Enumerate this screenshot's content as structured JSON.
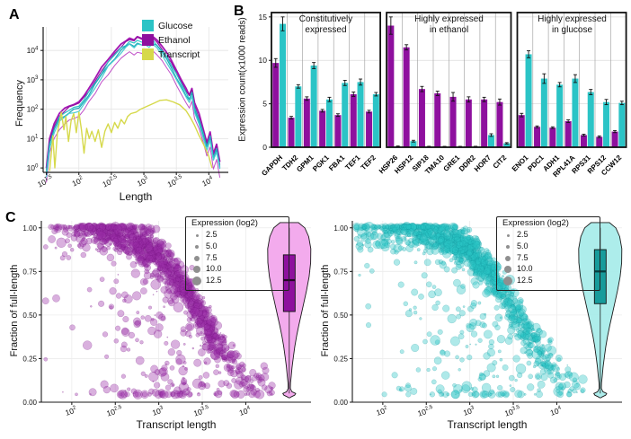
{
  "labels": {
    "panelA": "A",
    "panelB": "B",
    "panelC": "C"
  },
  "colors": {
    "glucose": "#2BC4C6",
    "ethanol": "#8E109E",
    "transcript": "#D6D94B",
    "grid": "#e4e4e4",
    "axis": "#1a1a1a",
    "legend_dot": "#8f8f8f"
  },
  "chart_data": [
    {
      "id": "A",
      "type": "line",
      "xlabel": "Length",
      "ylabel": "Frequency",
      "x_scale": "log10",
      "y_scale": "log10",
      "x_ticks": [
        "1.5",
        "2",
        "2.5",
        "3",
        "3.5",
        "4"
      ],
      "x_tick_vals": [
        1.5,
        2,
        2.5,
        3,
        3.5,
        4
      ],
      "y_ticks": [
        "0",
        "1",
        "2",
        "3",
        "4"
      ],
      "y_tick_vals": [
        0,
        1,
        2,
        3,
        4
      ],
      "xlim_log": [
        1.45,
        4.3
      ],
      "ylim_log": [
        -0.15,
        4.8
      ],
      "legend": [
        {
          "label": "Glucose",
          "color": "#2BC4C6"
        },
        {
          "label": "Ethanol",
          "color": "#8E109E"
        },
        {
          "label": "Transcript",
          "color": "#D6D94B"
        }
      ],
      "base_curve": [
        [
          1.5,
          0.0
        ],
        [
          1.55,
          1.0
        ],
        [
          1.62,
          1.5
        ],
        [
          1.7,
          1.85
        ],
        [
          1.78,
          2.0
        ],
        [
          1.85,
          2.1
        ],
        [
          1.92,
          2.2
        ],
        [
          2.0,
          2.25
        ],
        [
          2.08,
          2.45
        ],
        [
          2.15,
          2.7
        ],
        [
          2.25,
          3.05
        ],
        [
          2.35,
          3.4
        ],
        [
          2.45,
          3.7
        ],
        [
          2.55,
          3.95
        ],
        [
          2.65,
          4.2
        ],
        [
          2.72,
          4.35
        ],
        [
          2.78,
          4.45
        ],
        [
          2.85,
          4.38
        ],
        [
          2.9,
          4.48
        ],
        [
          2.97,
          4.42
        ],
        [
          3.03,
          4.5
        ],
        [
          3.08,
          4.42
        ],
        [
          3.13,
          4.48
        ],
        [
          3.2,
          4.35
        ],
        [
          3.28,
          4.15
        ],
        [
          3.35,
          3.9
        ],
        [
          3.42,
          3.65
        ],
        [
          3.5,
          3.3
        ],
        [
          3.58,
          3.0
        ],
        [
          3.65,
          2.7
        ],
        [
          3.7,
          2.5
        ],
        [
          3.74,
          2.75
        ],
        [
          3.78,
          2.2
        ],
        [
          3.85,
          1.8
        ],
        [
          3.92,
          1.3
        ],
        [
          3.97,
          0.9
        ],
        [
          4.02,
          1.2
        ],
        [
          4.07,
          0.5
        ],
        [
          4.12,
          0.8
        ],
        [
          4.17,
          0.2
        ]
      ],
      "series": [
        {
          "name": "Ethanol rep 1",
          "group": "ethanol",
          "color": "#A416B2",
          "offset": 0,
          "width": 1.8,
          "seed": 11
        },
        {
          "name": "Ethanol rep 2",
          "group": "ethanol",
          "color": "#8E109E",
          "offset": -0.06,
          "width": 1.1,
          "seed": 22
        },
        {
          "name": "Ethanol rep 3",
          "group": "ethanol",
          "color": "#C050C8",
          "offset": -0.5,
          "width": 1.0,
          "seed": 33
        },
        {
          "name": "Glucose rep 1",
          "group": "glucose",
          "color": "#2BC4C6",
          "offset": -0.14,
          "width": 1.2,
          "seed": 44
        },
        {
          "name": "Glucose rep 2",
          "group": "glucose",
          "color": "#1FA8B8",
          "offset": -0.2,
          "width": 1.2,
          "seed": 55
        },
        {
          "name": "Glucose rep 3",
          "group": "glucose",
          "color": "#49CDD2",
          "offset": -0.28,
          "width": 1.2,
          "seed": 66
        }
      ],
      "jitter": 0.1,
      "transcript_curve": [
        [
          1.55,
          -0.1
        ],
        [
          1.58,
          0.6
        ],
        [
          1.6,
          1.1
        ],
        [
          1.63,
          0.0
        ],
        [
          1.67,
          1.2
        ],
        [
          1.7,
          1.55
        ],
        [
          1.73,
          1.9
        ],
        [
          1.77,
          1.3
        ],
        [
          1.8,
          1.75
        ],
        [
          1.84,
          0.9
        ],
        [
          1.88,
          1.6
        ],
        [
          1.92,
          1.85
        ],
        [
          1.96,
          1.2
        ],
        [
          2.0,
          1.9
        ],
        [
          2.04,
          1.3
        ],
        [
          2.08,
          0.5
        ],
        [
          2.12,
          1.35
        ],
        [
          2.16,
          1.0
        ],
        [
          2.2,
          1.25
        ],
        [
          2.25,
          0.9
        ],
        [
          2.3,
          1.3
        ],
        [
          2.35,
          0.7
        ],
        [
          2.4,
          1.25
        ],
        [
          2.45,
          1.5
        ],
        [
          2.5,
          1.2
        ],
        [
          2.55,
          1.55
        ],
        [
          2.6,
          1.35
        ],
        [
          2.65,
          1.65
        ],
        [
          2.7,
          1.5
        ],
        [
          2.75,
          1.75
        ],
        [
          2.8,
          1.85
        ],
        [
          2.88,
          1.9
        ],
        [
          2.95,
          2.0
        ],
        [
          3.05,
          2.1
        ],
        [
          3.15,
          2.2
        ],
        [
          3.25,
          2.3
        ],
        [
          3.35,
          2.32
        ],
        [
          3.45,
          2.25
        ],
        [
          3.55,
          2.15
        ],
        [
          3.65,
          1.95
        ],
        [
          3.72,
          1.7
        ],
        [
          3.78,
          1.45
        ],
        [
          3.85,
          1.1
        ],
        [
          3.92,
          0.8
        ],
        [
          4.0,
          0.4
        ],
        [
          4.05,
          0.0
        ]
      ],
      "transcript_width": 1.4
    },
    {
      "id": "B",
      "type": "bar",
      "ylabel": "Expression count(x1000 reads)",
      "ylim": [
        0,
        15.5
      ],
      "y_ticks": [
        "0",
        "5",
        "10",
        "15"
      ],
      "y_tick_vals": [
        0,
        5,
        10,
        15
      ],
      "series_order": [
        "ethanol",
        "glucose"
      ],
      "groups": [
        {
          "title": "Constitutively\nexpressed",
          "genes": [
            "GAPDH",
            "TDH2",
            "GPM1",
            "PGK1",
            "FBA1",
            "TEF1",
            "TEF2"
          ],
          "ethanol": [
            9.7,
            3.4,
            5.6,
            4.2,
            3.7,
            6.1,
            4.1
          ],
          "ethanol_err": [
            0.5,
            0.15,
            0.2,
            0.15,
            0.15,
            0.25,
            0.15
          ],
          "glucose": [
            14.2,
            7.0,
            9.4,
            5.5,
            7.4,
            7.5,
            6.1
          ],
          "glucose_err": [
            0.8,
            0.2,
            0.35,
            0.25,
            0.3,
            0.35,
            0.2
          ]
        },
        {
          "title": "Highly expressed\nin ethanol",
          "genes": [
            "HSP26",
            "HSP12",
            "SIP18",
            "TMA10",
            "GRE1",
            "DDR2",
            "HOR7",
            "CIT2"
          ],
          "ethanol": [
            14.0,
            11.5,
            6.7,
            6.2,
            5.8,
            5.5,
            5.5,
            5.2
          ],
          "ethanol_err": [
            1.0,
            0.3,
            0.3,
            0.25,
            0.5,
            0.3,
            0.25,
            0.35
          ],
          "glucose": [
            0.1,
            0.7,
            0.08,
            0.07,
            0.07,
            0.08,
            1.4,
            0.45
          ],
          "glucose_err": [
            0.04,
            0.1,
            0.03,
            0.03,
            0.03,
            0.03,
            0.15,
            0.08
          ]
        },
        {
          "title": "Highly expressed\nin glucose",
          "genes": [
            "ENO1",
            "PDC1",
            "ADH1",
            "RPL41A",
            "RPS31",
            "RPS12",
            "CCW12"
          ],
          "ethanol": [
            3.7,
            2.35,
            2.25,
            3.0,
            1.4,
            1.2,
            1.8
          ],
          "ethanol_err": [
            0.2,
            0.1,
            0.1,
            0.15,
            0.1,
            0.1,
            0.12
          ],
          "glucose": [
            10.7,
            7.9,
            7.2,
            7.9,
            6.35,
            5.2,
            5.1
          ],
          "glucose_err": [
            0.4,
            0.55,
            0.25,
            0.45,
            0.3,
            0.3,
            0.2
          ]
        }
      ]
    },
    {
      "id": "C-ethanol",
      "type": "scatter",
      "condition": "Ethanol",
      "xlabel": "Transcript length",
      "ylabel": "Fraction of full-length",
      "x_scale": "log10",
      "x_ticks": [
        "2",
        "2.5",
        "3",
        "3.5",
        "4"
      ],
      "x_tick_vals": [
        2,
        2.5,
        3,
        3.5,
        4
      ],
      "y_ticks": [
        "0.00",
        "0.25",
        "0.50",
        "0.75",
        "1.00"
      ],
      "y_tick_vals": [
        0,
        0.25,
        0.5,
        0.75,
        1.0
      ],
      "legend_title": "Expression (log2)",
      "legend_sizes": [
        "2.5",
        "5.0",
        "7.5",
        "10.0",
        "12.5"
      ],
      "color": "#9B2FA8",
      "edge": "#6d0b78",
      "points_model": {
        "n": 1400,
        "seed": 42,
        "logx_mean": 3.02,
        "logx_sd": 0.48,
        "logx_min": 1.7,
        "logx_max": 4.3,
        "uniform_frac": 0.12,
        "sig_mid": 3.48,
        "sig_scale": 0.3,
        "noise_sd": 0.055,
        "outlier_frac": 0.08,
        "floor_frac": 0.05,
        "expr_mean": 7,
        "expr_sd": 2.6
      },
      "violin": {
        "fill": "#F2A7EC",
        "stroke": "#1a1a1a",
        "box_fill": "#8E109E",
        "median_color": "#240427",
        "q1": 0.52,
        "median": 0.7,
        "q3": 0.845,
        "whisker_low": 0.05,
        "whisker_high": 1.0,
        "profile": [
          [
            1.03,
            0.42
          ],
          [
            1.0,
            0.72
          ],
          [
            0.95,
            0.9
          ],
          [
            0.88,
            1.0
          ],
          [
            0.8,
            0.99
          ],
          [
            0.72,
            0.92
          ],
          [
            0.64,
            0.8
          ],
          [
            0.56,
            0.66
          ],
          [
            0.5,
            0.55
          ],
          [
            0.44,
            0.44
          ],
          [
            0.38,
            0.34
          ],
          [
            0.32,
            0.26
          ],
          [
            0.26,
            0.19
          ],
          [
            0.2,
            0.13
          ],
          [
            0.15,
            0.09
          ],
          [
            0.11,
            0.06
          ],
          [
            0.08,
            0.05
          ],
          [
            0.06,
            0.12
          ],
          [
            0.05,
            0.3
          ],
          [
            0.04,
            0.25
          ],
          [
            0.03,
            0.08
          ],
          [
            0.025,
            0.02
          ]
        ]
      }
    },
    {
      "id": "C-glucose",
      "type": "scatter",
      "condition": "Glucose",
      "xlabel": "Transcript length",
      "ylabel": "Fraction of full-length",
      "x_scale": "log10",
      "x_ticks": [
        "2",
        "2.5",
        "3",
        "3.5",
        "4"
      ],
      "x_tick_vals": [
        2,
        2.5,
        3,
        3.5,
        4
      ],
      "y_ticks": [
        "0.00",
        "0.25",
        "0.50",
        "0.75",
        "1.00"
      ],
      "y_tick_vals": [
        0,
        0.25,
        0.5,
        0.75,
        1.0
      ],
      "legend_title": "Expression (log2)",
      "legend_sizes": [
        "2.5",
        "5.0",
        "7.5",
        "10.0",
        "12.5"
      ],
      "color": "#2BC4C6",
      "edge": "#0e8f96",
      "points_model": {
        "n": 1400,
        "seed": 1337,
        "logx_mean": 3.0,
        "logx_sd": 0.5,
        "logx_min": 1.7,
        "logx_max": 4.3,
        "uniform_frac": 0.12,
        "sig_mid": 3.55,
        "sig_scale": 0.3,
        "noise_sd": 0.055,
        "outlier_frac": 0.08,
        "floor_frac": 0.05,
        "expr_mean": 7,
        "expr_sd": 2.6
      },
      "violin": {
        "fill": "#A9ECEA",
        "stroke": "#1a1a1a",
        "box_fill": "#179B9B",
        "median_color": "#053c3e",
        "q1": 0.565,
        "median": 0.75,
        "q3": 0.875,
        "whisker_low": 0.05,
        "whisker_high": 1.0,
        "profile": [
          [
            1.03,
            0.42
          ],
          [
            1.0,
            0.72
          ],
          [
            0.95,
            0.9
          ],
          [
            0.88,
            1.0
          ],
          [
            0.8,
            0.99
          ],
          [
            0.72,
            0.92
          ],
          [
            0.64,
            0.8
          ],
          [
            0.56,
            0.66
          ],
          [
            0.5,
            0.55
          ],
          [
            0.44,
            0.44
          ],
          [
            0.38,
            0.34
          ],
          [
            0.32,
            0.26
          ],
          [
            0.26,
            0.19
          ],
          [
            0.2,
            0.13
          ],
          [
            0.15,
            0.09
          ],
          [
            0.11,
            0.06
          ],
          [
            0.08,
            0.05
          ],
          [
            0.06,
            0.12
          ],
          [
            0.05,
            0.3
          ],
          [
            0.04,
            0.25
          ],
          [
            0.03,
            0.08
          ],
          [
            0.025,
            0.02
          ]
        ]
      }
    }
  ]
}
